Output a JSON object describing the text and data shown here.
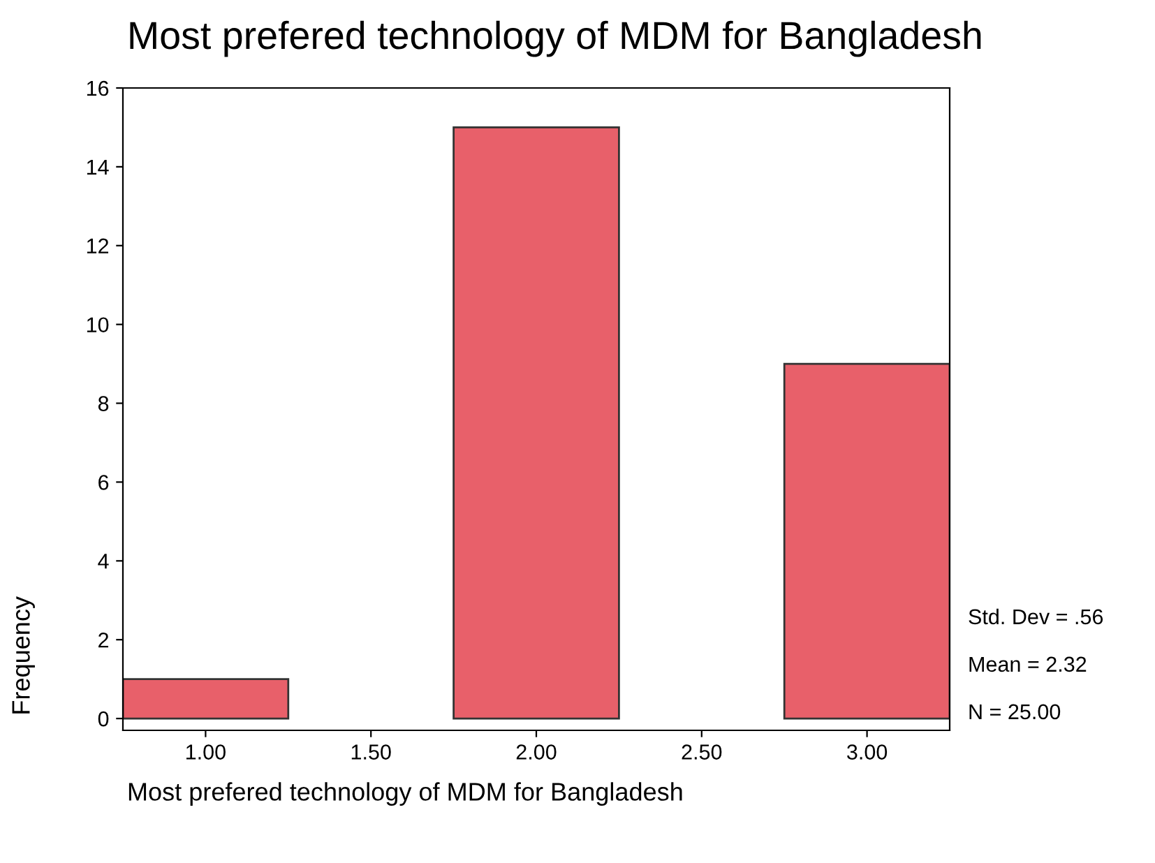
{
  "chart_data": {
    "type": "histogram",
    "title": "Most prefered technology of MDM for Bangladesh",
    "xlabel": "Most prefered technology of MDM for Bangladesh",
    "ylabel": "Frequency",
    "bins": [
      0.75,
      1.25,
      1.75,
      2.25,
      2.75,
      3.25
    ],
    "values": [
      1,
      0,
      15,
      0,
      9
    ],
    "color": "#e8606a",
    "xlim": [
      0.75,
      3.25
    ],
    "xticks": [
      {
        "value": 1,
        "label": "1.00"
      },
      {
        "value": 1.5,
        "label": "1.50"
      },
      {
        "value": 2,
        "label": "2.00"
      },
      {
        "value": 2.5,
        "label": "2.50"
      },
      {
        "value": 3,
        "label": "3.00"
      }
    ],
    "ylim": [
      -0.3,
      16
    ],
    "yticks": [
      0,
      2,
      4,
      6,
      8,
      10,
      12,
      14,
      16
    ],
    "annotations": [
      "Std. Dev = .56",
      "Mean = 2.32",
      "N = 25.00"
    ],
    "grid": false,
    "legend": false
  }
}
